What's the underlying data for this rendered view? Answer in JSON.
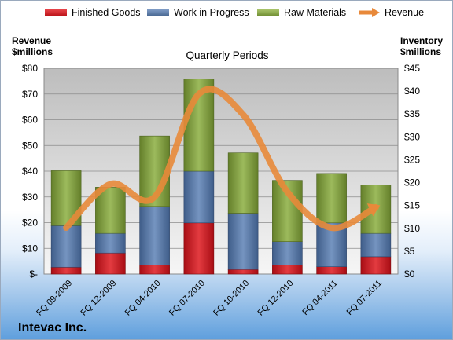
{
  "chart_data": {
    "type": "bar",
    "title": "Quarterly Periods",
    "company": "Intevac Inc.",
    "categories": [
      "FQ 09-2009",
      "FQ 12-2009",
      "FQ 04-2010",
      "FQ 07-2010",
      "FQ 10-2010",
      "FQ 12-2010",
      "FQ 04-2011",
      "FQ 07-2011"
    ],
    "stacked": true,
    "series": [
      {
        "name": "Finished Goods",
        "type": "bar",
        "axis": "right",
        "color": "#c8141c",
        "values": [
          1.5,
          4.6,
          2.0,
          11.2,
          1.0,
          2.0,
          1.6,
          3.8
        ]
      },
      {
        "name": "Work in Progress",
        "type": "bar",
        "axis": "right",
        "color": "#4f6f9f",
        "values": [
          9.1,
          4.3,
          12.8,
          11.3,
          12.3,
          5.1,
          9.6,
          5.1
        ]
      },
      {
        "name": "Raw Materials",
        "type": "bar",
        "axis": "right",
        "color": "#7a9a3a",
        "values": [
          12.0,
          10.1,
          15.4,
          20.2,
          13.2,
          13.4,
          10.8,
          10.6
        ]
      },
      {
        "name": "Revenue",
        "type": "line",
        "axis": "left",
        "color": "#e8893a",
        "values": [
          18,
          35,
          30,
          70,
          62,
          32,
          18,
          26
        ]
      }
    ],
    "y_left": {
      "label_line1": "Revenue",
      "label_line2": "$millions",
      "lim": [
        0,
        80
      ],
      "ticks": [
        0,
        10,
        20,
        30,
        40,
        50,
        60,
        70,
        80
      ],
      "tick_labels": [
        "$-",
        "$10",
        "$20",
        "$30",
        "$40",
        "$50",
        "$60",
        "$70",
        "$80"
      ]
    },
    "y_right": {
      "label_line1": "Inventory",
      "label_line2": "$millions",
      "lim": [
        0,
        45
      ],
      "ticks": [
        0,
        5,
        10,
        15,
        20,
        25,
        30,
        35,
        40,
        45
      ],
      "tick_labels": [
        "$0",
        "$5",
        "$10",
        "$15",
        "$20",
        "$25",
        "$30",
        "$35",
        "$40",
        "$45"
      ]
    },
    "grid": true,
    "legend": "top"
  }
}
